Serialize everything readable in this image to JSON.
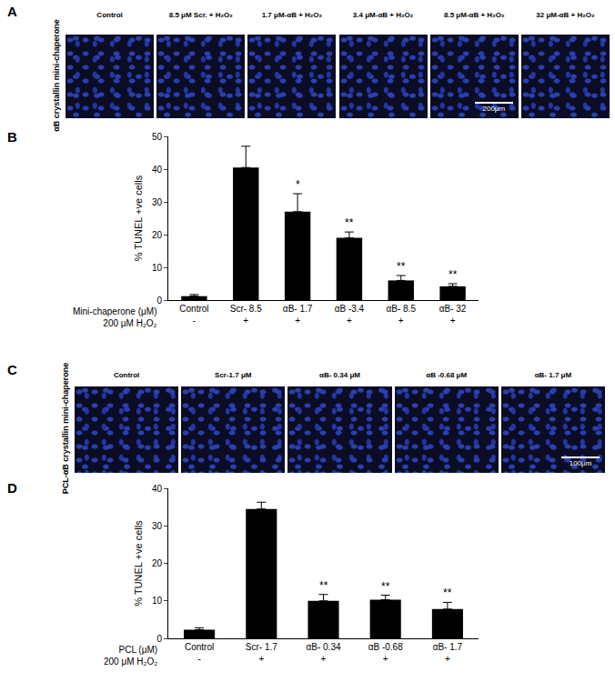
{
  "letters": [
    "A",
    "B",
    "C",
    "D"
  ],
  "image_panels": [
    {
      "side_label": "αB crystallin mini-chaperone",
      "titles": [
        "Control",
        "8.5 μM Scr. + H₂O₂",
        "1.7 μM-αB + H₂O₂",
        "3.4 μM-αB + H₂O₂",
        "8.5 μM-αB + H₂O₂",
        "32 μM-αB + H₂O₂"
      ],
      "scale_bar": "200μm"
    },
    {
      "side_label": "PCL-αB crystallin mini-chaperone",
      "titles": [
        "Control",
        "Scr-1.7 μM",
        "αB- 0.34 μM",
        "αB -0.68 μM",
        "αB- 1.7 μM"
      ],
      "scale_bar": "100μm"
    }
  ],
  "chart_data": [
    {
      "type": "bar",
      "categories": [
        "Control",
        "Scr- 8.5",
        "αB- 1.7",
        "αB -3.4",
        "αB- 8.5",
        "αB- 32"
      ],
      "values": [
        1.2,
        40.5,
        27,
        19,
        6,
        4.2
      ],
      "errors": [
        0.5,
        6.5,
        5.5,
        1.8,
        1.5,
        0.8
      ],
      "annotations": [
        null,
        null,
        "*",
        "**",
        "**",
        "**"
      ],
      "x_label": "Mini-chaperone (μM)",
      "second_row": {
        "label": "200 μM H₂O₂",
        "values": [
          "-",
          "+",
          "+",
          "+",
          "+",
          "+"
        ]
      },
      "y_label": "% TUNEL +ve cells",
      "ylim": [
        0,
        50
      ],
      "yticks": [
        0,
        10,
        20,
        30,
        40,
        50
      ],
      "color": "#000000",
      "grid": false
    },
    {
      "type": "bar",
      "categories": [
        "Control",
        "Scr- 1.7",
        "αB- 0.34",
        "αB -0.68",
        "αB- 1.7"
      ],
      "values": [
        2.3,
        34.5,
        10,
        10.3,
        7.8
      ],
      "errors": [
        0.5,
        1.8,
        1.7,
        1.2,
        1.8
      ],
      "annotations": [
        null,
        null,
        "**",
        "**",
        "**"
      ],
      "x_label": "PCL (μM)",
      "second_row": {
        "label": "200 μM H₂O₂",
        "values": [
          "-",
          "+",
          "+",
          "+",
          "+"
        ]
      },
      "y_label": "% TUNEL +ve cells",
      "ylim": [
        0,
        40
      ],
      "yticks": [
        0,
        10,
        20,
        30,
        40
      ],
      "color": "#000000",
      "grid": false
    }
  ]
}
